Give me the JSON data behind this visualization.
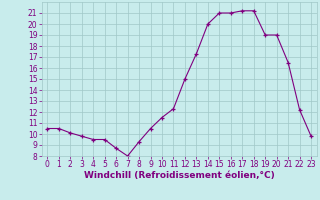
{
  "hours": [
    0,
    1,
    2,
    3,
    4,
    5,
    6,
    7,
    8,
    9,
    10,
    11,
    12,
    13,
    14,
    15,
    16,
    17,
    18,
    19,
    20,
    21,
    22,
    23
  ],
  "values": [
    10.5,
    10.5,
    10.1,
    9.8,
    9.5,
    9.5,
    8.7,
    8.0,
    9.3,
    10.5,
    11.5,
    12.3,
    15.0,
    17.3,
    20.0,
    21.0,
    21.0,
    21.2,
    21.2,
    19.0,
    19.0,
    16.5,
    12.2,
    9.8
  ],
  "line_color": "#800080",
  "marker": "+",
  "bg_color": "#c8ecec",
  "grid_color": "#a0c8c8",
  "xlabel": "Windchill (Refroidissement éolien,°C)",
  "ylim": [
    8,
    22
  ],
  "xlim": [
    -0.5,
    23.5
  ],
  "yticks": [
    8,
    9,
    10,
    11,
    12,
    13,
    14,
    15,
    16,
    17,
    18,
    19,
    20,
    21
  ],
  "xticks": [
    0,
    1,
    2,
    3,
    4,
    5,
    6,
    7,
    8,
    9,
    10,
    11,
    12,
    13,
    14,
    15,
    16,
    17,
    18,
    19,
    20,
    21,
    22,
    23
  ],
  "tick_color": "#800080",
  "label_color": "#800080",
  "fontsize_ticks": 5.5,
  "fontsize_label": 6.5
}
